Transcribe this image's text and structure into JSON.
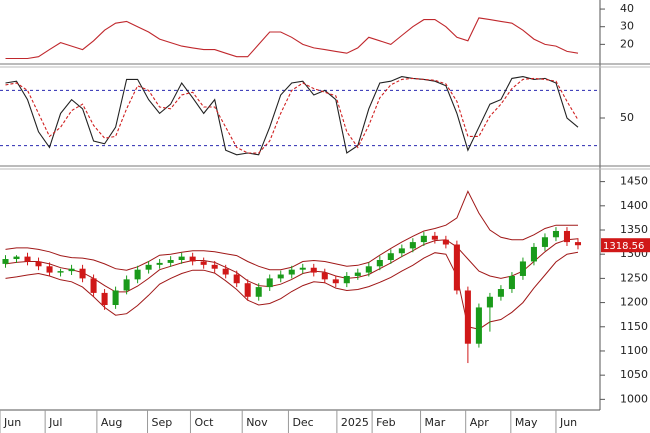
{
  "chart_data": [
    {
      "type": "line",
      "ylim": [
        10,
        44
      ],
      "yticks": [
        20,
        30,
        40
      ],
      "series": [
        {
          "color": "#c0282d",
          "values": [
            12,
            12,
            12,
            13,
            17,
            21,
            19,
            17,
            22,
            28,
            32,
            33,
            30,
            27,
            23,
            21,
            19,
            18,
            17,
            17,
            15,
            13,
            13,
            20,
            27,
            27,
            24,
            20,
            18,
            17,
            16,
            15,
            18,
            24,
            22,
            20,
            25,
            30,
            34,
            34,
            30,
            24,
            22,
            35,
            34,
            33,
            32,
            28,
            23,
            20,
            19,
            16,
            15
          ]
        }
      ]
    },
    {
      "type": "line",
      "ylim": [
        0,
        100
      ],
      "yticks": [
        50
      ],
      "ref_lines": [
        20,
        80
      ],
      "ref_color": "#2a2ab0",
      "series": [
        {
          "color": "#222222",
          "values": [
            88,
            90,
            70,
            35,
            18,
            55,
            70,
            60,
            25,
            22,
            40,
            92,
            92,
            70,
            55,
            65,
            88,
            72,
            55,
            70,
            15,
            10,
            12,
            10,
            40,
            75,
            88,
            90,
            75,
            80,
            70,
            12,
            20,
            60,
            88,
            90,
            95,
            93,
            92,
            90,
            85,
            55,
            15,
            40,
            65,
            70,
            93,
            95,
            92,
            93,
            88,
            50,
            40
          ]
        },
        {
          "color": "#d02020",
          "dashed": true,
          "values": [
            86,
            88,
            80,
            55,
            30,
            40,
            58,
            65,
            42,
            28,
            30,
            60,
            85,
            80,
            62,
            60,
            75,
            78,
            62,
            62,
            40,
            18,
            12,
            12,
            25,
            55,
            80,
            88,
            82,
            78,
            74,
            35,
            18,
            42,
            72,
            86,
            92,
            93,
            92,
            91,
            87,
            68,
            30,
            30,
            52,
            65,
            82,
            92,
            93,
            92,
            90,
            68,
            48
          ]
        }
      ]
    },
    {
      "type": "candlestick",
      "ylim": [
        978,
        1474
      ],
      "yticks": [
        1000,
        1050,
        1100,
        1150,
        1200,
        1250,
        1300,
        1350,
        1400,
        1450
      ],
      "xlim": [
        -0.5,
        54
      ],
      "xticks": [
        {
          "value": -0.5,
          "label": "Jun"
        },
        {
          "value": 3.6,
          "label": "Jul"
        },
        {
          "value": 8.3,
          "label": "Aug"
        },
        {
          "value": 12.9,
          "label": "Sep"
        },
        {
          "value": 16.8,
          "label": "Oct"
        },
        {
          "value": 21.5,
          "label": "Nov"
        },
        {
          "value": 25.7,
          "label": "Dec"
        },
        {
          "value": 30.1,
          "label": "2025"
        },
        {
          "value": 33.3,
          "label": "Feb"
        },
        {
          "value": 37.7,
          "label": "Mar"
        },
        {
          "value": 41.8,
          "label": "Apr"
        },
        {
          "value": 45.9,
          "label": "May"
        },
        {
          "value": 50,
          "label": "Jun"
        }
      ],
      "up_color": "#1a9a1a",
      "down_color": "#d01818",
      "band_color": "#a01818",
      "tag_color": "#d01818",
      "open": [
        1280,
        1290,
        1295,
        1285,
        1275,
        1262,
        1265,
        1270,
        1250,
        1220,
        1195,
        1225,
        1248,
        1268,
        1278,
        1282,
        1288,
        1295,
        1285,
        1278,
        1270,
        1258,
        1240,
        1212,
        1232,
        1250,
        1258,
        1268,
        1272,
        1262,
        1248,
        1240,
        1255,
        1262,
        1275,
        1288,
        1302,
        1312,
        1325,
        1338,
        1330,
        1320,
        1225,
        1115,
        1190,
        1212,
        1228,
        1255,
        1285,
        1315,
        1335,
        1348,
        1325
      ],
      "high": [
        1298,
        1298,
        1303,
        1293,
        1283,
        1270,
        1278,
        1278,
        1258,
        1228,
        1233,
        1256,
        1276,
        1286,
        1290,
        1296,
        1303,
        1303,
        1293,
        1286,
        1278,
        1266,
        1248,
        1240,
        1258,
        1266,
        1276,
        1280,
        1280,
        1270,
        1256,
        1263,
        1270,
        1283,
        1296,
        1310,
        1320,
        1333,
        1346,
        1346,
        1338,
        1328,
        1233,
        1198,
        1220,
        1236,
        1263,
        1293,
        1323,
        1343,
        1356,
        1356,
        1333
      ],
      "low": [
        1272,
        1282,
        1277,
        1267,
        1254,
        1254,
        1257,
        1242,
        1212,
        1185,
        1187,
        1217,
        1240,
        1260,
        1270,
        1274,
        1280,
        1277,
        1270,
        1262,
        1250,
        1232,
        1204,
        1204,
        1224,
        1242,
        1250,
        1260,
        1254,
        1240,
        1232,
        1232,
        1247,
        1254,
        1267,
        1280,
        1294,
        1304,
        1317,
        1322,
        1312,
        1217,
        1075,
        1107,
        1140,
        1204,
        1220,
        1247,
        1277,
        1307,
        1327,
        1317,
        1310
      ],
      "close": [
        1290,
        1295,
        1285,
        1275,
        1262,
        1265,
        1270,
        1250,
        1220,
        1195,
        1225,
        1248,
        1268,
        1278,
        1282,
        1288,
        1295,
        1285,
        1278,
        1270,
        1258,
        1240,
        1212,
        1232,
        1250,
        1258,
        1268,
        1272,
        1262,
        1248,
        1240,
        1255,
        1262,
        1275,
        1288,
        1302,
        1312,
        1325,
        1338,
        1330,
        1320,
        1225,
        1115,
        1190,
        1212,
        1228,
        1255,
        1285,
        1315,
        1335,
        1348,
        1325,
        1318.56
      ],
      "bands": [
        {
          "values": [
            1310,
            1313,
            1313,
            1310,
            1305,
            1297,
            1293,
            1292,
            1288,
            1280,
            1270,
            1267,
            1274,
            1285,
            1298,
            1300,
            1304,
            1307,
            1307,
            1305,
            1301,
            1297,
            1285,
            1275,
            1268,
            1268,
            1273,
            1285,
            1287,
            1285,
            1280,
            1275,
            1277,
            1283,
            1298,
            1312,
            1325,
            1337,
            1348,
            1353,
            1360,
            1375,
            1430,
            1385,
            1350,
            1335,
            1330,
            1330,
            1340,
            1353,
            1360,
            1360,
            1360
          ]
        },
        {
          "values": [
            1280,
            1283,
            1285,
            1285,
            1280,
            1272,
            1268,
            1262,
            1250,
            1235,
            1222,
            1222,
            1234,
            1250,
            1268,
            1275,
            1282,
            1287,
            1287,
            1283,
            1273,
            1262,
            1245,
            1235,
            1233,
            1238,
            1248,
            1260,
            1265,
            1263,
            1255,
            1250,
            1252,
            1258,
            1270,
            1282,
            1295,
            1307,
            1320,
            1328,
            1330,
            1315,
            1290,
            1265,
            1255,
            1250,
            1255,
            1265,
            1285,
            1305,
            1322,
            1330,
            1332
          ]
        },
        {
          "values": [
            1250,
            1253,
            1257,
            1260,
            1255,
            1247,
            1243,
            1232,
            1212,
            1190,
            1174,
            1177,
            1194,
            1215,
            1238,
            1250,
            1260,
            1267,
            1267,
            1261,
            1245,
            1227,
            1205,
            1195,
            1198,
            1208,
            1223,
            1235,
            1243,
            1241,
            1230,
            1225,
            1227,
            1233,
            1242,
            1252,
            1265,
            1277,
            1292,
            1303,
            1300,
            1255,
            1150,
            1145,
            1160,
            1165,
            1180,
            1200,
            1230,
            1257,
            1284,
            1300,
            1304
          ]
        }
      ]
    }
  ]
}
